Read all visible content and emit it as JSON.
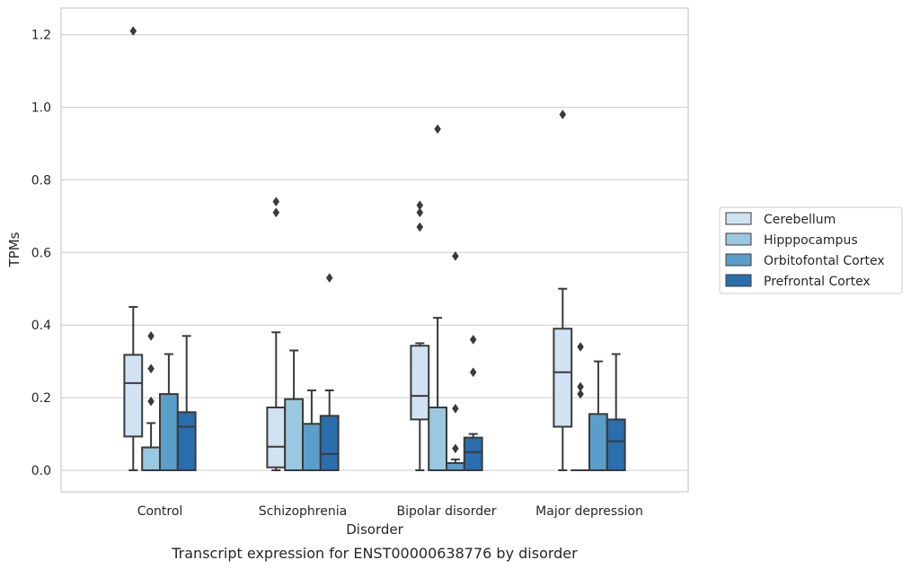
{
  "caption": "Transcript expression for ENST00000638776 by disorder",
  "chart_data": {
    "type": "box",
    "title": "",
    "xlabel": "Disorder",
    "ylabel": "TPMs",
    "ylim": [
      -0.06,
      1.27
    ],
    "yticks": [
      "0.0",
      "0.2",
      "0.4",
      "0.6",
      "0.8",
      "1.0",
      "1.2"
    ],
    "grid": "horizontal",
    "legend_position": "right",
    "categories": [
      "Control",
      "Schizophrenia",
      "Bipolar disorder",
      "Major depression"
    ],
    "series": [
      {
        "name": "Cerebellum",
        "color": "#d1e2f2",
        "boxes": [
          {
            "whisker_low": 0.0,
            "q1": 0.093,
            "median": 0.24,
            "q3": 0.318,
            "whisker_high": 0.45,
            "outliers": [
              1.21
            ]
          },
          {
            "whisker_low": 0.0,
            "q1": 0.008,
            "median": 0.065,
            "q3": 0.173,
            "whisker_high": 0.38,
            "outliers": [
              0.71,
              0.74
            ]
          },
          {
            "whisker_low": 0.0,
            "q1": 0.14,
            "median": 0.205,
            "q3": 0.343,
            "whisker_high": 0.35,
            "outliers": [
              0.67,
              0.71,
              0.73
            ]
          },
          {
            "whisker_low": 0.0,
            "q1": 0.12,
            "median": 0.27,
            "q3": 0.39,
            "whisker_high": 0.5,
            "outliers": [
              0.98
            ]
          }
        ]
      },
      {
        "name": "Hipppocampus",
        "color": "#9ac8e0",
        "boxes": [
          {
            "whisker_low": 0.0,
            "q1": 0.0,
            "median": 0.0,
            "q3": 0.063,
            "whisker_high": 0.13,
            "outliers": [
              0.19,
              0.28,
              0.37
            ]
          },
          {
            "whisker_low": 0.0,
            "q1": 0.0,
            "median": 0.0,
            "q3": 0.196,
            "whisker_high": 0.33,
            "outliers": []
          },
          {
            "whisker_low": 0.0,
            "q1": 0.0,
            "median": 0.0,
            "q3": 0.173,
            "whisker_high": 0.42,
            "outliers": [
              0.94
            ]
          },
          {
            "whisker_low": 0.0,
            "q1": 0.0,
            "median": 0.0,
            "q3": 0.0,
            "whisker_high": 0.0,
            "outliers": [
              0.21,
              0.23,
              0.34
            ]
          }
        ]
      },
      {
        "name": "Orbitofontal Cortex",
        "color": "#5b9ec9",
        "boxes": [
          {
            "whisker_low": 0.0,
            "q1": 0.0,
            "median": 0.0,
            "q3": 0.21,
            "whisker_high": 0.32,
            "outliers": []
          },
          {
            "whisker_low": 0.0,
            "q1": 0.0,
            "median": 0.0,
            "q3": 0.128,
            "whisker_high": 0.22,
            "outliers": []
          },
          {
            "whisker_low": 0.0,
            "q1": 0.0,
            "median": 0.0,
            "q3": 0.02,
            "whisker_high": 0.03,
            "outliers": [
              0.06,
              0.17,
              0.59
            ]
          },
          {
            "whisker_low": 0.0,
            "q1": 0.0,
            "median": 0.0,
            "q3": 0.155,
            "whisker_high": 0.3,
            "outliers": []
          }
        ]
      },
      {
        "name": "Prefrontal Cortex",
        "color": "#2a6ead",
        "boxes": [
          {
            "whisker_low": 0.0,
            "q1": 0.0,
            "median": 0.12,
            "q3": 0.16,
            "whisker_high": 0.37,
            "outliers": []
          },
          {
            "whisker_low": 0.0,
            "q1": 0.0,
            "median": 0.045,
            "q3": 0.15,
            "whisker_high": 0.22,
            "outliers": [
              0.53
            ]
          },
          {
            "whisker_low": 0.0,
            "q1": 0.0,
            "median": 0.05,
            "q3": 0.09,
            "whisker_high": 0.1,
            "outliers": [
              0.27,
              0.36
            ]
          },
          {
            "whisker_low": 0.0,
            "q1": 0.0,
            "median": 0.08,
            "q3": 0.14,
            "whisker_high": 0.32,
            "outliers": []
          }
        ]
      }
    ]
  }
}
